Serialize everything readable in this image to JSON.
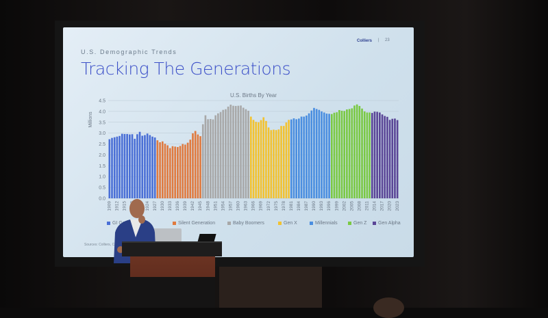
{
  "slide": {
    "brand": "Colliers",
    "separator": "|",
    "page_number": "23",
    "subtitle": "U.S. Demographic Trends",
    "title": "Tracking The Generations",
    "source": "Sources: Colliers, CD"
  },
  "chart_data": {
    "type": "bar",
    "title": "U.S. Births By Year",
    "ylabel": "Millions",
    "xlabel": "",
    "ylim": [
      0,
      4.5
    ],
    "yticks": [
      "0.0",
      "0.5",
      "1.0",
      "1.5",
      "2.0",
      "2.5",
      "3.0",
      "3.5",
      "4.0",
      "4.5"
    ],
    "grid": true,
    "legend": "bottom",
    "x_start": 1909,
    "xtick_every": 3,
    "series": [
      {
        "name": "GI Generation",
        "color": "#4a6fd6",
        "years": [
          1909,
          1927
        ],
        "values": [
          2.72,
          2.78,
          2.81,
          2.84,
          2.87,
          2.97,
          2.96,
          2.96,
          2.94,
          2.95,
          2.74,
          2.95,
          3.06,
          2.88,
          2.91,
          2.98,
          2.91,
          2.84,
          2.8
        ]
      },
      {
        "name": "Silent Generation",
        "color": "#e07a3f",
        "years": [
          1928,
          1945
        ],
        "values": [
          2.67,
          2.58,
          2.62,
          2.51,
          2.44,
          2.31,
          2.4,
          2.38,
          2.36,
          2.41,
          2.5,
          2.47,
          2.56,
          2.7,
          2.99,
          3.1,
          2.94,
          2.86
        ]
      },
      {
        "name": "Baby Boomers",
        "color": "#a8a8a8",
        "years": [
          1946,
          1964
        ],
        "values": [
          3.41,
          3.82,
          3.64,
          3.65,
          3.63,
          3.82,
          3.91,
          3.97,
          4.07,
          4.1,
          4.22,
          4.31,
          4.26,
          4.25,
          4.26,
          4.27,
          4.17,
          4.1,
          4.03
        ]
      },
      {
        "name": "Gen X",
        "color": "#f2c230",
        "years": [
          1965,
          1980
        ],
        "values": [
          3.76,
          3.61,
          3.52,
          3.5,
          3.6,
          3.73,
          3.56,
          3.26,
          3.14,
          3.16,
          3.14,
          3.17,
          3.33,
          3.33,
          3.49,
          3.61
        ]
      },
      {
        "name": "Millennials",
        "color": "#4a8ee0",
        "years": [
          1981,
          1996
        ],
        "values": [
          3.63,
          3.68,
          3.64,
          3.67,
          3.76,
          3.76,
          3.81,
          3.91,
          4.04,
          4.16,
          4.11,
          4.07,
          4.0,
          3.95,
          3.9,
          3.89
        ]
      },
      {
        "name": "Gen Z",
        "color": "#7ac943",
        "years": [
          1997,
          2012
        ],
        "values": [
          3.88,
          3.94,
          3.96,
          4.06,
          4.03,
          4.02,
          4.09,
          4.11,
          4.14,
          4.27,
          4.32,
          4.25,
          4.13,
          4.0,
          3.95,
          3.95
        ]
      },
      {
        "name": "Gen Alpha",
        "color": "#5a4596",
        "years": [
          2013,
          2023
        ],
        "values": [
          3.93,
          3.99,
          3.98,
          3.95,
          3.86,
          3.79,
          3.75,
          3.61,
          3.66,
          3.67,
          3.6
        ]
      }
    ]
  }
}
